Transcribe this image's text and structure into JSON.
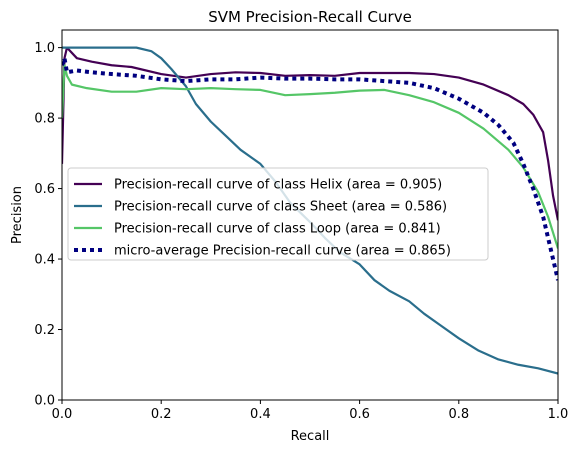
{
  "chart_data": {
    "type": "line",
    "title": "SVM Precision-Recall Curve",
    "xlabel": "Recall",
    "ylabel": "Precision",
    "xlim": [
      0.0,
      1.0
    ],
    "ylim": [
      0.0,
      1.05
    ],
    "xticks": [
      "0.0",
      "0.2",
      "0.4",
      "0.6",
      "0.8",
      "1.0"
    ],
    "yticks": [
      "0.0",
      "0.2",
      "0.4",
      "0.6",
      "0.8",
      "1.0"
    ],
    "grid": false,
    "legend_position": "center-right",
    "series": [
      {
        "name": "Precision-recall curve of class Helix (area = 0.905)",
        "color": "#440154",
        "style": "solid",
        "x": [
          0.0,
          0.005,
          0.01,
          0.03,
          0.06,
          0.1,
          0.14,
          0.2,
          0.25,
          0.3,
          0.35,
          0.4,
          0.45,
          0.5,
          0.55,
          0.6,
          0.65,
          0.7,
          0.75,
          0.8,
          0.85,
          0.9,
          0.93,
          0.95,
          0.97,
          0.98,
          0.99,
          1.0
        ],
        "y": [
          0.67,
          0.97,
          1.0,
          0.97,
          0.96,
          0.95,
          0.945,
          0.925,
          0.915,
          0.925,
          0.93,
          0.928,
          0.92,
          0.922,
          0.92,
          0.928,
          0.928,
          0.928,
          0.925,
          0.915,
          0.895,
          0.865,
          0.84,
          0.81,
          0.76,
          0.68,
          0.58,
          0.51
        ]
      },
      {
        "name": "Precision-recall curve of class Sheet (area = 0.586)",
        "color": "#2a6e8c",
        "style": "solid",
        "x": [
          0.0,
          0.005,
          0.01,
          0.05,
          0.1,
          0.15,
          0.18,
          0.2,
          0.22,
          0.25,
          0.27,
          0.3,
          0.33,
          0.36,
          0.4,
          0.43,
          0.46,
          0.5,
          0.53,
          0.56,
          0.6,
          0.63,
          0.66,
          0.7,
          0.73,
          0.76,
          0.8,
          0.84,
          0.88,
          0.92,
          0.96,
          1.0
        ],
        "y": [
          1.0,
          1.0,
          1.0,
          1.0,
          1.0,
          1.0,
          0.99,
          0.97,
          0.94,
          0.89,
          0.84,
          0.79,
          0.75,
          0.71,
          0.67,
          0.62,
          0.56,
          0.505,
          0.46,
          0.42,
          0.385,
          0.34,
          0.31,
          0.28,
          0.245,
          0.215,
          0.175,
          0.14,
          0.115,
          0.1,
          0.09,
          0.075
        ]
      },
      {
        "name": "Precision-recall curve of class Loop (area = 0.841)",
        "color": "#55c667",
        "style": "solid",
        "x": [
          0.0,
          0.005,
          0.01,
          0.02,
          0.05,
          0.1,
          0.15,
          0.2,
          0.25,
          0.3,
          0.35,
          0.4,
          0.45,
          0.5,
          0.55,
          0.6,
          0.65,
          0.7,
          0.75,
          0.8,
          0.85,
          0.9,
          0.93,
          0.96,
          0.98,
          1.0
        ],
        "y": [
          0.8,
          0.95,
          0.92,
          0.895,
          0.885,
          0.875,
          0.875,
          0.885,
          0.882,
          0.885,
          0.882,
          0.88,
          0.865,
          0.868,
          0.872,
          0.878,
          0.88,
          0.865,
          0.845,
          0.815,
          0.77,
          0.71,
          0.66,
          0.59,
          0.52,
          0.43
        ]
      },
      {
        "name": "micro-average Precision-recall curve (area = 0.865)",
        "color": "#000080",
        "style": "dotted",
        "x": [
          0.0,
          0.005,
          0.01,
          0.03,
          0.06,
          0.1,
          0.15,
          0.2,
          0.25,
          0.3,
          0.35,
          0.4,
          0.45,
          0.5,
          0.55,
          0.6,
          0.65,
          0.7,
          0.75,
          0.8,
          0.85,
          0.88,
          0.91,
          0.93,
          0.95,
          0.97,
          0.985,
          1.0
        ],
        "y": [
          0.95,
          0.97,
          0.93,
          0.935,
          0.93,
          0.925,
          0.92,
          0.91,
          0.905,
          0.91,
          0.91,
          0.915,
          0.912,
          0.912,
          0.91,
          0.91,
          0.905,
          0.9,
          0.885,
          0.855,
          0.815,
          0.78,
          0.73,
          0.67,
          0.6,
          0.52,
          0.43,
          0.34
        ]
      }
    ]
  }
}
